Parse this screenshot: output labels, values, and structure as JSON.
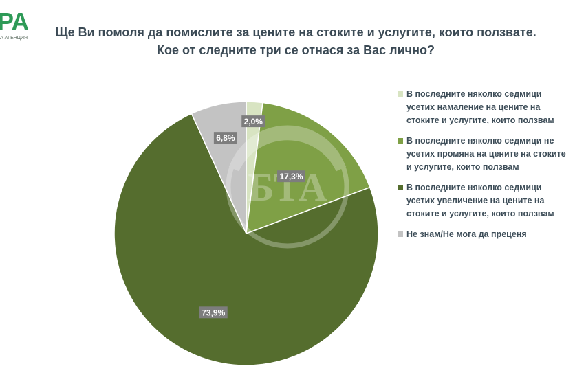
{
  "brand": {
    "logo_text": "PA",
    "logo_subtext": "А АГЕНЦИЯ"
  },
  "title": {
    "line1": "Ще Ви помоля да помислите за цените на стоките и услугите, които ползвате.",
    "line2": "Кое от следните три се отнася за Вас лично?"
  },
  "watermark_text": "БТА",
  "chart_data": {
    "type": "pie",
    "start_angle_deg": 0,
    "direction": "clockwise",
    "slices": [
      {
        "label": "В последните няколко седмици усетих намаление на цените на стоките и услугите, които ползвам",
        "value": 2.0,
        "value_label": "2,0%",
        "color": "#d8e4c2"
      },
      {
        "label": "В последните няколко седмици не усетих промяна на цените на стоките и услугите, които ползвам",
        "value": 17.3,
        "value_label": "17,3%",
        "color": "#7fa046"
      },
      {
        "label": "В последните няколко седмици усетих увеличение на цените на стоките и услугите, които ползвам",
        "value": 73.9,
        "value_label": "73,9%",
        "color": "#556d2e"
      },
      {
        "label": "Не знам/Не мога да преценя",
        "value": 6.8,
        "value_label": "6,8%",
        "color": "#c3c3c3"
      }
    ],
    "legend_position": "right"
  }
}
